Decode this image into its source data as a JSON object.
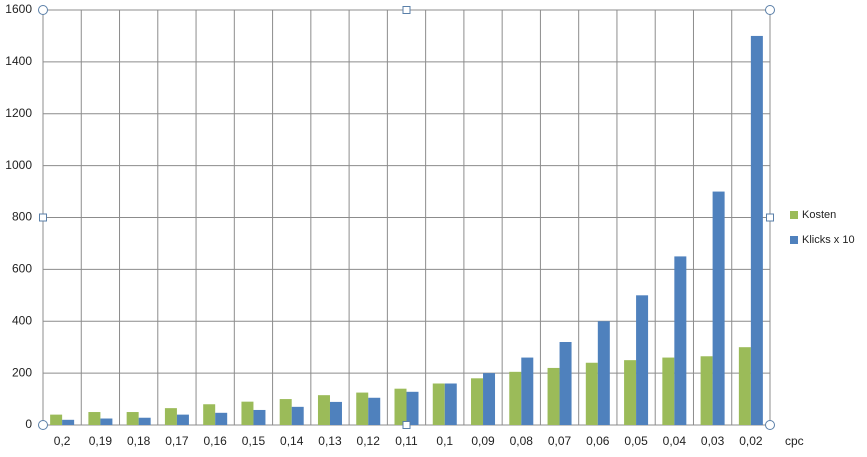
{
  "chart_data": {
    "type": "bar",
    "x_label": "cpc",
    "categories": [
      "0,2",
      "0,19",
      "0,18",
      "0,17",
      "0,16",
      "0,15",
      "0,14",
      "0,13",
      "0,12",
      "0,11",
      "0,1",
      "0,09",
      "0,08",
      "0,07",
      "0,06",
      "0,05",
      "0,04",
      "0,03",
      "0,02"
    ],
    "series": [
      {
        "name": "Kosten",
        "color": "#9bbb59",
        "values": [
          40,
          50,
          50,
          65,
          80,
          90,
          100,
          115,
          125,
          140,
          160,
          180,
          205,
          220,
          240,
          250,
          260,
          265,
          300
        ]
      },
      {
        "name": "Klicks x 10",
        "color": "#4f81bd",
        "values": [
          20,
          25,
          28,
          40,
          47,
          58,
          70,
          89,
          105,
          128,
          160,
          200,
          260,
          320,
          400,
          500,
          650,
          900,
          1500
        ]
      }
    ],
    "ylim": [
      0,
      1600
    ],
    "yticks": [
      0,
      200,
      400,
      600,
      800,
      1000,
      1200,
      1400,
      1600
    ],
    "grid": true,
    "legend": "right"
  }
}
